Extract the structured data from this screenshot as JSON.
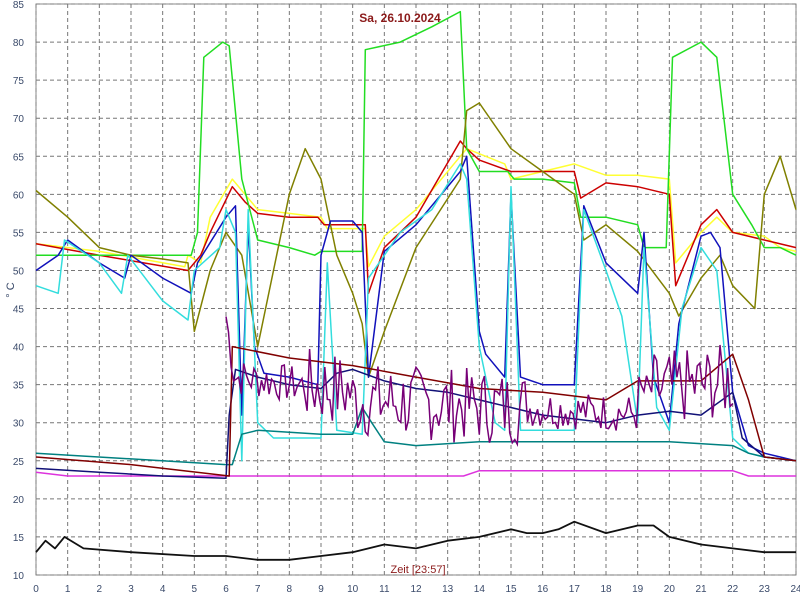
{
  "chart_data": {
    "type": "line",
    "title": "Sa, 26.10.2024",
    "xlabel": "Zeit [23:57]",
    "ylabel": "° C",
    "xlim": [
      0,
      24
    ],
    "ylim": [
      10,
      85
    ],
    "xticks": [
      0,
      1,
      2,
      3,
      4,
      5,
      6,
      7,
      8,
      9,
      10,
      11,
      12,
      13,
      14,
      15,
      16,
      17,
      18,
      19,
      20,
      21,
      22,
      23,
      24
    ],
    "yticks": [
      10,
      15,
      20,
      25,
      30,
      35,
      40,
      45,
      50,
      55,
      60,
      65,
      70,
      75,
      80,
      85
    ],
    "grid": true,
    "series": [
      {
        "color": "#ffff33",
        "width": 1.5,
        "x": [
          0,
          2,
          4.7,
          4.8,
          5.2,
          5.5,
          6.2,
          6.6,
          7.0,
          8.0,
          9.0,
          9.2,
          10.4,
          10.5,
          11.0,
          12.0,
          13.4,
          13.6,
          14.8,
          15.0,
          17.0,
          18.0,
          19.0,
          20.0,
          20.2,
          21.0,
          21.5,
          22.0,
          23.0,
          23.5,
          24.0
        ],
        "y": [
          53.5,
          52.5,
          50.5,
          52.0,
          51.0,
          57.0,
          62.0,
          60.0,
          58.0,
          57.5,
          57.0,
          55.5,
          55.5,
          50.5,
          54.5,
          58.0,
          65.0,
          66.0,
          64.0,
          62.0,
          64.0,
          62.5,
          62.5,
          62.0,
          51.0,
          55.0,
          57.0,
          55.0,
          54.5,
          53.0,
          52.5
        ]
      },
      {
        "color": "#cc0000",
        "width": 1.5,
        "x": [
          0,
          2,
          4.8,
          5.2,
          5.5,
          6.2,
          6.6,
          7.0,
          8.0,
          8.9,
          9.1,
          10.4,
          10.5,
          11.0,
          12.0,
          13.4,
          13.6,
          14.0,
          15.0,
          16.0,
          17.0,
          17.2,
          18.0,
          19.0,
          20.0,
          20.2,
          21.0,
          21.5,
          22.0,
          23.0,
          24.0
        ],
        "y": [
          53.5,
          52.0,
          50.0,
          52.0,
          55.0,
          61.0,
          59.0,
          57.5,
          57.0,
          57.0,
          56.0,
          56.0,
          47.0,
          53.0,
          57.0,
          67.0,
          66.0,
          64.5,
          63.0,
          63.0,
          63.0,
          59.5,
          61.5,
          61.0,
          60.0,
          48.0,
          56.0,
          58.0,
          55.0,
          54.0,
          53.0
        ]
      },
      {
        "color": "#22dd22",
        "width": 1.5,
        "x": [
          0,
          4.9,
          5.1,
          5.3,
          5.9,
          6.1,
          6.5,
          7.0,
          8.0,
          8.8,
          9.0,
          10.3,
          10.4,
          11.5,
          12.5,
          13.4,
          13.6,
          14.0,
          14.9,
          15.1,
          16.0,
          17.0,
          17.2,
          18.0,
          19.0,
          19.2,
          19.9,
          20.1,
          21.0,
          21.5,
          22.0,
          22.6,
          23.0,
          23.5,
          24.0
        ],
        "y": [
          52.0,
          52.0,
          55.0,
          78.0,
          80.0,
          79.5,
          62.0,
          54.0,
          53.0,
          52.0,
          52.5,
          52.5,
          79.0,
          80.0,
          82.0,
          84.0,
          66.0,
          63.0,
          63.0,
          62.0,
          62.0,
          61.5,
          57.0,
          57.0,
          56.0,
          53.0,
          53.0,
          78.0,
          80.0,
          78.0,
          60.0,
          56.0,
          53.0,
          53.0,
          52.0
        ]
      },
      {
        "color": "#808000",
        "width": 1.5,
        "x": [
          0,
          1,
          2,
          3,
          4,
          4.8,
          5.0,
          5.5,
          6.0,
          6.5,
          7.0,
          8.0,
          8.5,
          9.0,
          9.5,
          10.0,
          10.3,
          10.5,
          11.0,
          12.0,
          13.4,
          13.6,
          14.0,
          15.0,
          16.0,
          17.0,
          17.3,
          18.0,
          19.0,
          20.0,
          20.3,
          21.0,
          21.6,
          22.0,
          22.7,
          23.0,
          23.5,
          24.0
        ],
        "y": [
          60.5,
          57.0,
          53.0,
          52.0,
          51.5,
          51.0,
          42.0,
          50.0,
          55.0,
          52.0,
          40.0,
          60.0,
          66.0,
          62.0,
          52.0,
          47.0,
          43.0,
          36.0,
          42.0,
          53.0,
          62.0,
          71.0,
          72.0,
          66.0,
          63.0,
          60.0,
          54.0,
          56.0,
          52.5,
          47.0,
          44.0,
          49.0,
          52.0,
          48.0,
          45.0,
          60.0,
          65.0,
          58.0
        ]
      },
      {
        "color": "#1111bb",
        "width": 1.5,
        "x": [
          0,
          0.7,
          1.0,
          2.0,
          2.8,
          3.0,
          4.0,
          4.9,
          5.1,
          6.0,
          6.3,
          6.5,
          6.7,
          6.9,
          7.2,
          8.0,
          8.9,
          9.0,
          9.3,
          10.0,
          10.3,
          10.5,
          11.0,
          12.0,
          13.4,
          13.6,
          14.0,
          14.2,
          14.8,
          15.0,
          15.3,
          16.0,
          17.0,
          17.3,
          18.0,
          19.0,
          19.2,
          19.5,
          20.0,
          20.3,
          21.0,
          21.3,
          21.6,
          22.0,
          22.5,
          23.0,
          23.5,
          24.0
        ],
        "y": [
          50.0,
          52.0,
          54.0,
          51.0,
          49.0,
          52.0,
          49.0,
          47.0,
          51.0,
          57.0,
          58.5,
          31.0,
          56.0,
          40.0,
          36.5,
          36.0,
          35.0,
          52.0,
          56.5,
          56.5,
          55.0,
          36.0,
          52.5,
          56.0,
          63.0,
          65.0,
          42.0,
          39.0,
          36.0,
          60.0,
          36.0,
          35.0,
          35.0,
          58.5,
          51.0,
          47.0,
          55.0,
          36.0,
          30.0,
          43.0,
          54.5,
          55.0,
          53.0,
          34.0,
          27.0,
          26.0,
          25.5,
          25.0
        ]
      },
      {
        "color": "#33dddd",
        "width": 1.5,
        "x": [
          0,
          0.7,
          0.9,
          2.0,
          2.7,
          2.9,
          4.0,
          4.8,
          5.0,
          5.8,
          6.0,
          6.3,
          6.5,
          6.7,
          7.0,
          7.5,
          9.0,
          9.2,
          9.5,
          10.3,
          10.5,
          11.5,
          12.5,
          13.4,
          13.6,
          14.0,
          14.5,
          14.8,
          15.0,
          15.3,
          16.0,
          17.0,
          17.3,
          18.0,
          18.5,
          19.0,
          19.2,
          19.6,
          20.0,
          20.4,
          21.0,
          21.5,
          22.0,
          22.5,
          23.0,
          24.0
        ],
        "y": [
          48.0,
          47.0,
          54.0,
          51.0,
          47.0,
          52.0,
          46.0,
          43.5,
          50.0,
          53.0,
          58.0,
          55.0,
          25.0,
          58.0,
          30.0,
          28.0,
          28.0,
          51.0,
          29.0,
          28.5,
          49.0,
          55.0,
          58.0,
          64.0,
          62.0,
          40.0,
          30.0,
          29.0,
          61.0,
          29.0,
          29.0,
          29.0,
          58.0,
          50.0,
          44.0,
          30.0,
          53.0,
          32.0,
          29.0,
          45.0,
          53.0,
          50.0,
          28.0,
          26.0,
          25.5,
          25.0
        ]
      },
      {
        "color": "#008080",
        "width": 1.5,
        "x": [
          0,
          6.0,
          6.2,
          6.5,
          7.0,
          9.0,
          10.0,
          10.3,
          10.6,
          11.0,
          12.0,
          14.0,
          16.0,
          18.0,
          20.0,
          22.0,
          22.5,
          23.0,
          24.0
        ],
        "y": [
          26.0,
          24.5,
          24.5,
          28.5,
          29.0,
          28.5,
          28.5,
          32.0,
          30.0,
          27.5,
          27.0,
          27.5,
          27.5,
          27.5,
          27.5,
          27.0,
          26.0,
          25.5,
          25.0
        ]
      },
      {
        "color": "#dd33dd",
        "width": 1.5,
        "x": [
          0,
          1,
          6,
          10,
          12,
          13.5,
          14,
          20,
          22,
          22.5,
          23,
          24
        ],
        "y": [
          23.5,
          23.0,
          23.0,
          23.0,
          23.0,
          23.0,
          23.7,
          23.7,
          23.7,
          23.0,
          23.0,
          23.0
        ]
      },
      {
        "color": "#111177",
        "width": 1.5,
        "x": [
          0,
          2,
          4,
          6.0,
          6.1,
          6.3,
          7.0,
          8.0,
          9.0,
          9.5,
          10.0,
          11.0,
          12.0,
          13.0,
          14.0,
          15.0,
          16.0,
          17.0,
          18.0,
          19.0,
          20.0,
          21.0,
          22.0,
          22.3,
          23.0,
          24.0
        ],
        "y": [
          24.0,
          23.5,
          23.0,
          22.7,
          31.0,
          37.0,
          36.0,
          35.0,
          34.5,
          36.5,
          37.0,
          35.5,
          34.5,
          34.0,
          33.0,
          32.0,
          31.0,
          30.5,
          30.0,
          31.0,
          31.5,
          31.0,
          34.0,
          28.0,
          25.5,
          25.0
        ]
      },
      {
        "color": "#800000",
        "width": 1.5,
        "x": [
          0,
          3,
          6.1,
          6.2,
          8.0,
          10.0,
          12.0,
          14.0,
          16.0,
          18.0,
          19.0,
          20.0,
          21.0,
          22.0,
          22.5,
          23.0,
          24.0
        ],
        "y": [
          25.5,
          24.5,
          23.0,
          40.0,
          38.5,
          37.5,
          36.0,
          34.5,
          34.0,
          33.0,
          35.5,
          35.5,
          35.5,
          39.0,
          33.0,
          25.5,
          25.0
        ]
      },
      {
        "color": "#111111",
        "width": 1.8,
        "x": [
          0,
          0.3,
          0.6,
          0.9,
          1.5,
          3.0,
          5.0,
          6.0,
          7.0,
          8.0,
          9.0,
          10.0,
          11.0,
          12.0,
          13.0,
          14.0,
          15.0,
          15.5,
          16.0,
          16.5,
          17.0,
          18.0,
          19.0,
          19.5,
          20.0,
          21.0,
          22.0,
          23.0,
          24.0
        ],
        "y": [
          13.0,
          14.5,
          13.5,
          15.0,
          13.5,
          13.0,
          12.5,
          12.5,
          12.0,
          12.0,
          12.5,
          13.0,
          14.0,
          13.5,
          14.5,
          15.0,
          16.0,
          15.5,
          15.5,
          16.0,
          17.0,
          15.5,
          16.5,
          16.5,
          15.0,
          14.0,
          13.5,
          13.0,
          13.0
        ]
      }
    ]
  }
}
